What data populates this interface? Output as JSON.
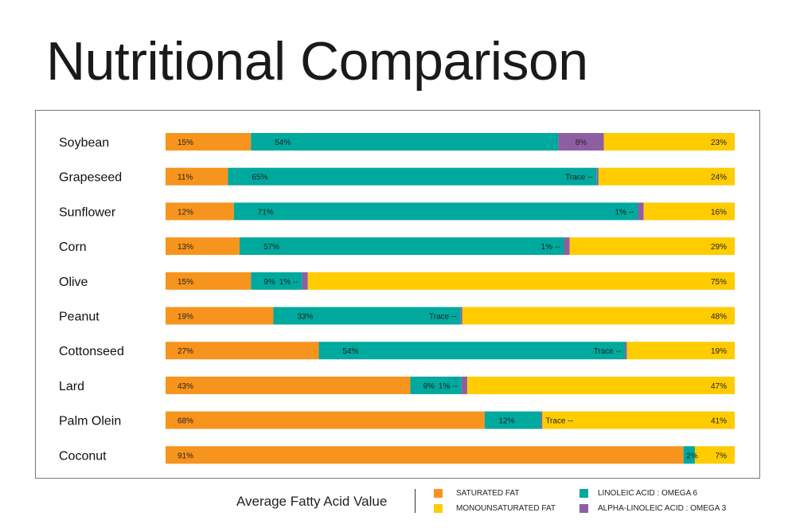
{
  "chart_data": {
    "type": "bar",
    "orientation": "horizontal",
    "stacked": true,
    "title": "Nutritional Comparison",
    "legend_title": "Average Fatty Acid Value",
    "legend_placement": "bottom",
    "grid": false,
    "categories": [
      "Soybean",
      "Grapeseed",
      "Sunflower",
      "Corn",
      "Olive",
      "Peanut",
      "Cottonseed",
      "Lard",
      "Palm Olein",
      "Coconut"
    ],
    "series": [
      {
        "name": "SATURATED FAT",
        "color": "#F7941D",
        "values": [
          15,
          11,
          12,
          13,
          15,
          19,
          27,
          43,
          68,
          91
        ],
        "labels": [
          "15%",
          "11%",
          "12%",
          "13%",
          "15%",
          "19%",
          "27%",
          "43%",
          "68%",
          "91%"
        ]
      },
      {
        "name": "LINOLEIC ACID : OMEGA 6",
        "color": "#00A99D",
        "values": [
          54,
          65,
          71,
          57,
          9,
          33,
          54,
          9,
          12,
          2
        ],
        "labels": [
          "54%",
          "65%",
          "71%",
          "57%",
          "9%",
          "33%",
          "54%",
          "9%",
          "12%",
          "2%"
        ]
      },
      {
        "name": "ALPHA-LINOLEIC ACID : OMEGA 3",
        "color": "#8E5EA2",
        "values": [
          8,
          "Trace",
          1,
          1,
          1,
          "Trace",
          "Trace",
          1,
          "Trace",
          0
        ],
        "labels": [
          "8%",
          "Trace --",
          "1% --",
          "1% --",
          "1% --",
          "Trace --",
          "Trace --",
          "1% --",
          "Trace --",
          ""
        ]
      },
      {
        "name": "MONOUNSATURATED FAT",
        "color": "#FFCC00",
        "values": [
          23,
          24,
          16,
          29,
          75,
          48,
          19,
          47,
          41,
          7
        ],
        "labels": [
          "23%",
          "24%",
          "16%",
          "29%",
          "75%",
          "48%",
          "19%",
          "47%",
          "41%",
          "7%"
        ]
      }
    ]
  }
}
